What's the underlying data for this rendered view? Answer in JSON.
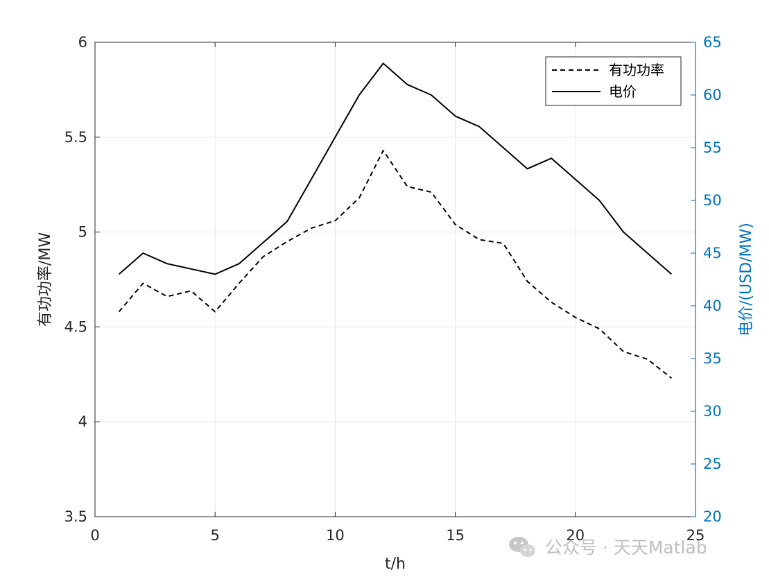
{
  "chart_data": {
    "type": "line",
    "x": [
      1,
      2,
      3,
      4,
      5,
      6,
      7,
      8,
      9,
      10,
      11,
      12,
      13,
      14,
      15,
      16,
      17,
      18,
      19,
      20,
      21,
      22,
      23,
      24
    ],
    "xlabel": "t/h",
    "xlim": [
      0,
      25
    ],
    "xticks": [
      "0",
      "5",
      "10",
      "15",
      "20",
      "25"
    ],
    "left_axis": {
      "label": "有功功率/MW",
      "ylim": [
        3.5,
        6
      ],
      "ticks": [
        "3.5",
        "4",
        "4.5",
        "5",
        "5.5",
        "6"
      ],
      "color": "#000000"
    },
    "right_axis": {
      "label": "电价/(USD/MW)",
      "ylim": [
        20,
        65
      ],
      "ticks": [
        "20",
        "25",
        "30",
        "35",
        "40",
        "45",
        "50",
        "55",
        "60",
        "65"
      ],
      "color": "#0072BD"
    },
    "series": [
      {
        "name": "有功功率",
        "axis": "left",
        "style": "dashed",
        "color": "#000000",
        "values": [
          4.58,
          4.73,
          4.66,
          4.69,
          4.58,
          4.73,
          4.87,
          4.95,
          5.02,
          5.06,
          5.18,
          5.43,
          5.24,
          5.21,
          5.04,
          4.96,
          4.94,
          4.74,
          4.63,
          4.55,
          4.49,
          4.37,
          4.33,
          4.23
        ]
      },
      {
        "name": "电价",
        "axis": "right",
        "style": "solid",
        "color": "#000000",
        "values": [
          43,
          45,
          44,
          43.5,
          43,
          44,
          46,
          48,
          52,
          56,
          60,
          63,
          61,
          60,
          58,
          57,
          55,
          53,
          54,
          52,
          50,
          47,
          45,
          43
        ]
      }
    ],
    "grid": true,
    "legend_position": "top-right"
  },
  "watermark": {
    "text": "公众号 · 天天Matlab",
    "icon": "wechat-icon"
  },
  "colors": {
    "right_axis": "#0072BD",
    "grid": "#e6e6e6",
    "axis": "#262626"
  }
}
